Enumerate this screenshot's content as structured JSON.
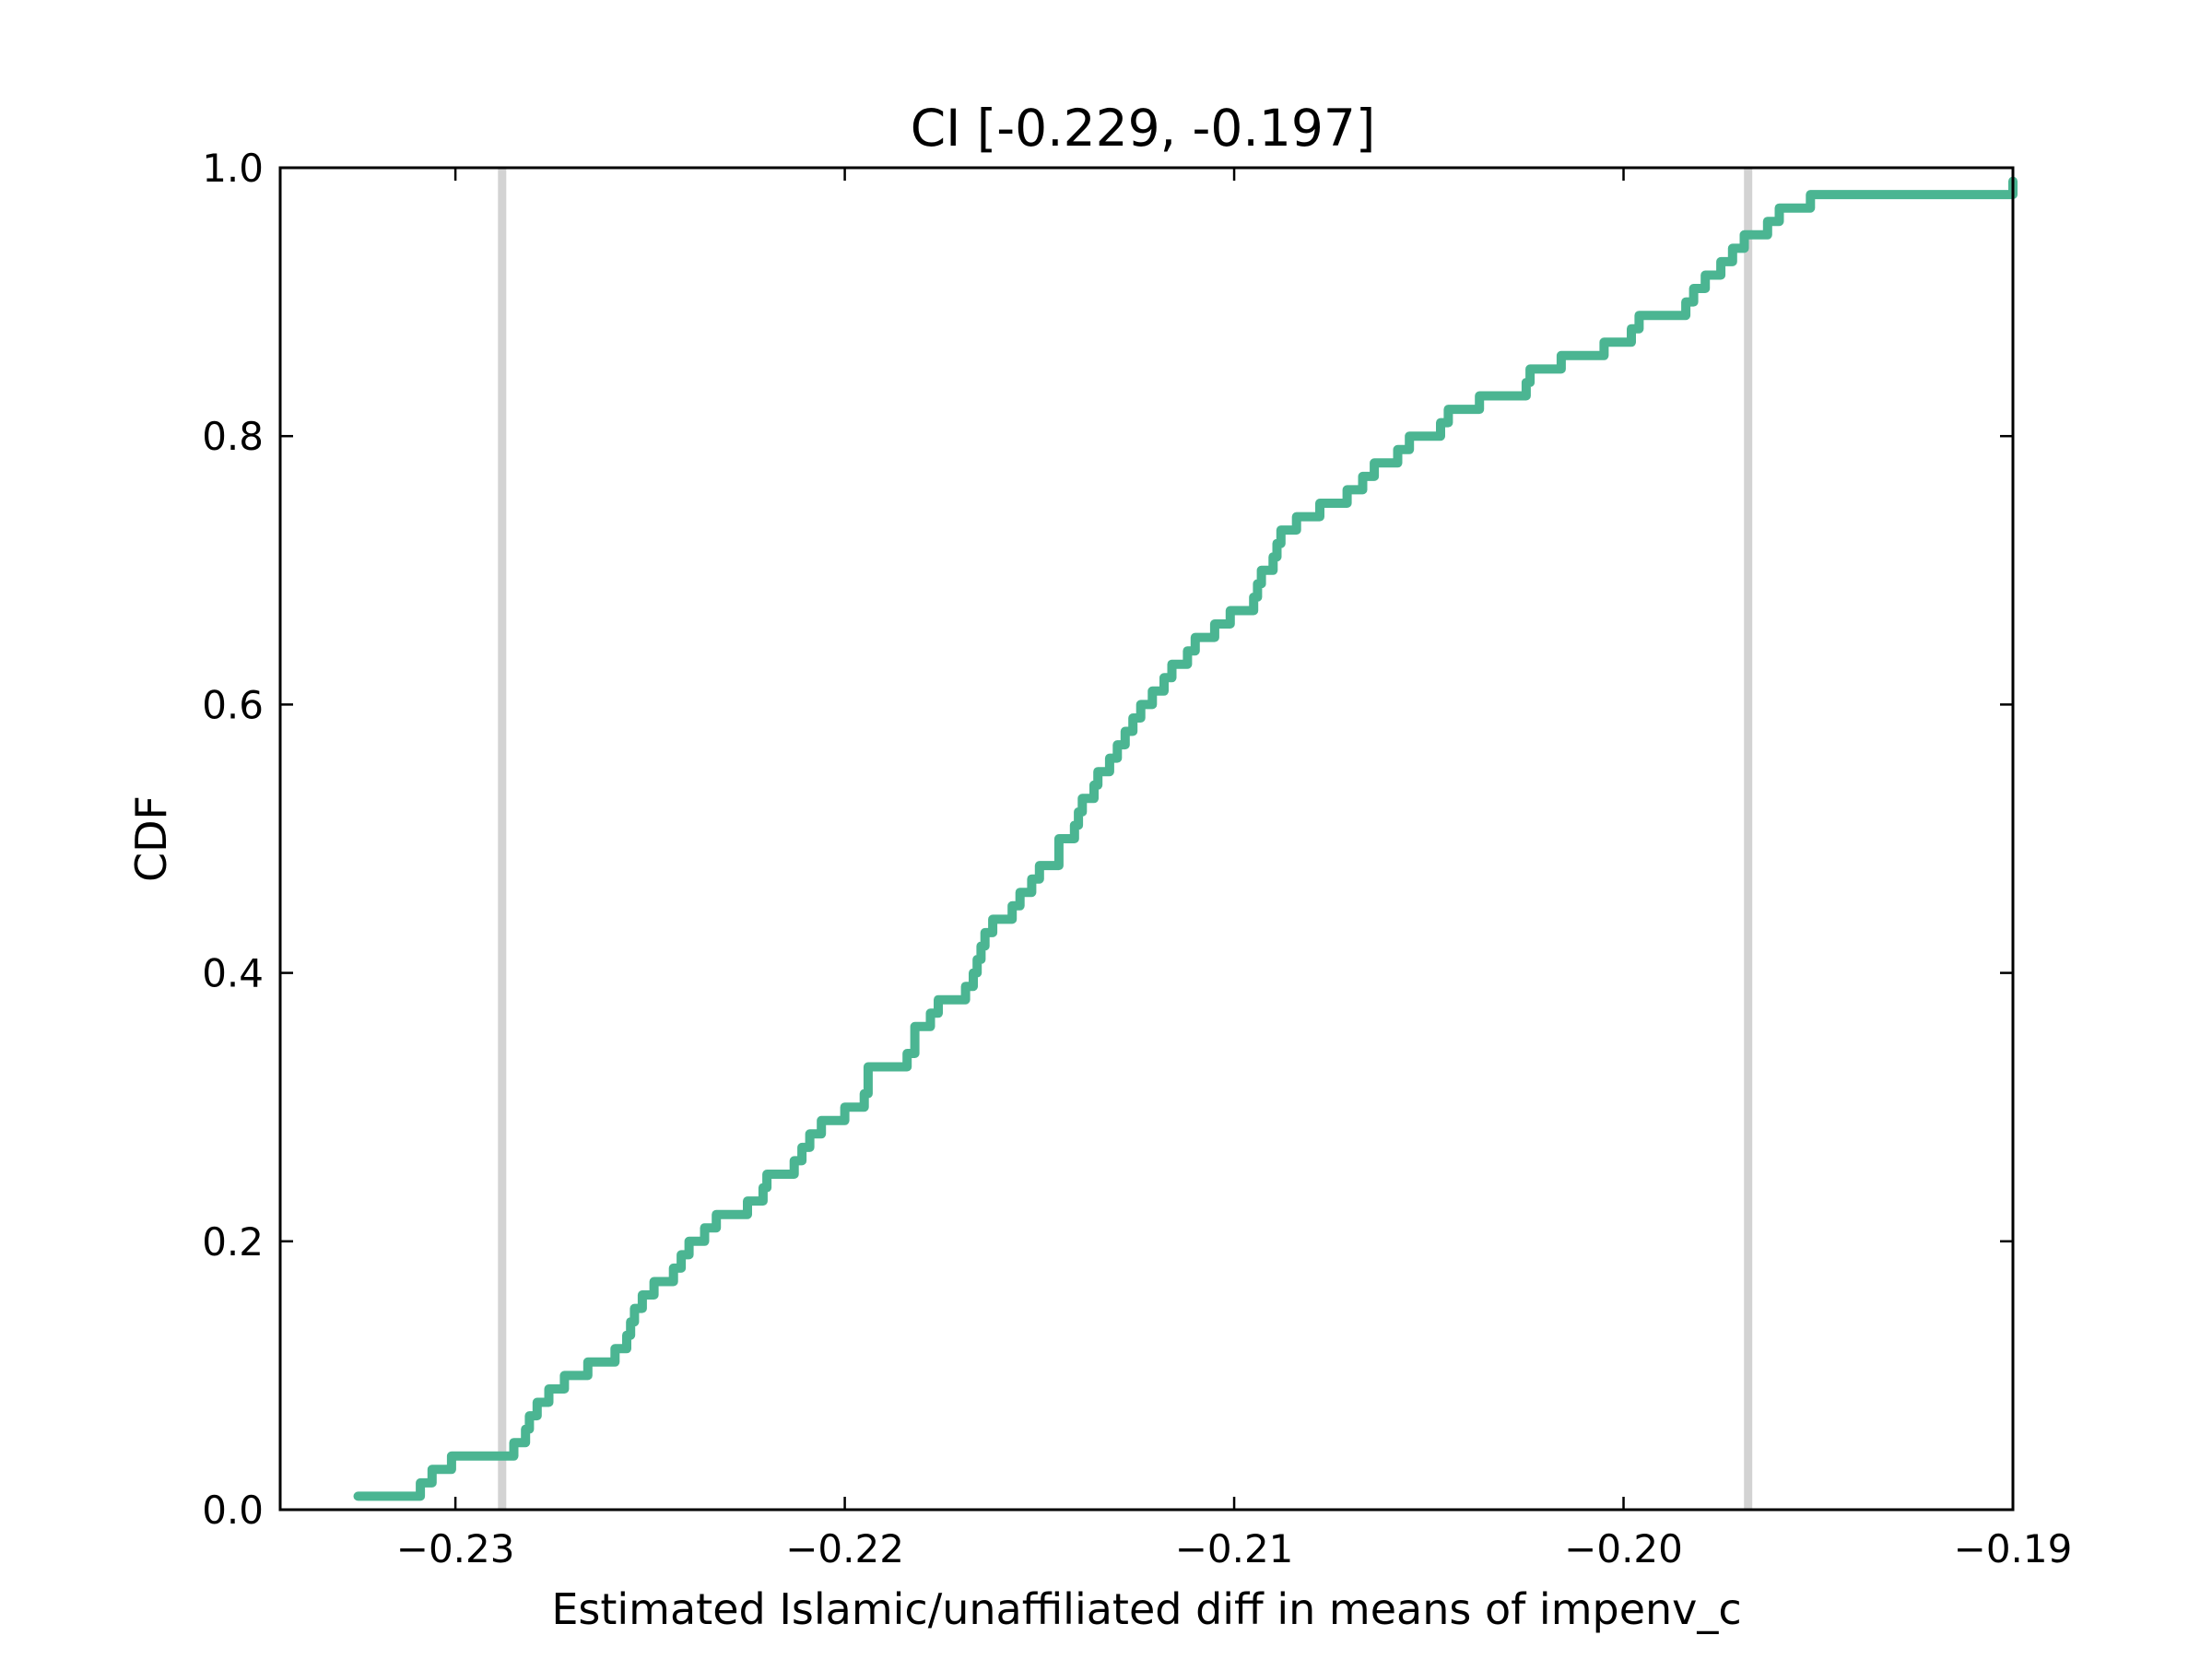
{
  "chart_data": {
    "type": "line",
    "title": "CI [-0.229, -0.197]",
    "xlabel": "Estimated Islamic/unaffiliated diff in means of impenv_c",
    "ylabel": "CDF",
    "xlim": [
      -0.2345,
      -0.19
    ],
    "ylim": [
      0,
      1
    ],
    "x_ticks": [
      {
        "value": -0.23,
        "label": "−0.23"
      },
      {
        "value": -0.22,
        "label": "−0.22"
      },
      {
        "value": -0.21,
        "label": "−0.21"
      },
      {
        "value": -0.2,
        "label": "−0.20"
      },
      {
        "value": -0.19,
        "label": "−0.19"
      }
    ],
    "y_ticks": [
      {
        "value": 0.0,
        "label": "0.0"
      },
      {
        "value": 0.2,
        "label": "0.2"
      },
      {
        "value": 0.4,
        "label": "0.4"
      },
      {
        "value": 0.6,
        "label": "0.6"
      },
      {
        "value": 0.8,
        "label": "0.8"
      },
      {
        "value": 1.0,
        "label": "1.0"
      }
    ],
    "grid": false,
    "ci_lines": [
      -0.2288,
      -0.1968
    ],
    "series": [
      {
        "color": "#4bb592",
        "drawstyle": "steps-post",
        "x": [
          -0.2325,
          -0.2309,
          -0.2306,
          -0.2301,
          -0.2285,
          -0.2282,
          -0.2281,
          -0.2279,
          -0.2276,
          -0.2272,
          -0.2266,
          -0.2259,
          -0.2256,
          -0.2255,
          -0.2254,
          -0.2252,
          -0.2249,
          -0.2244,
          -0.2242,
          -0.224,
          -0.2236,
          -0.2233,
          -0.2225,
          -0.2221,
          -0.222,
          -0.2213,
          -0.2211,
          -0.2209,
          -0.2206,
          -0.22,
          -0.2195,
          -0.2194,
          -0.2194,
          -0.2184,
          -0.2182,
          -0.2182,
          -0.2178,
          -0.2176,
          -0.2169,
          -0.2167,
          -0.2166,
          -0.2165,
          -0.2164,
          -0.2162,
          -0.2157,
          -0.2155,
          -0.2152,
          -0.215,
          -0.2145,
          -0.2145,
          -0.2141,
          -0.214,
          -0.2139,
          -0.2136,
          -0.2135,
          -0.2132,
          -0.213,
          -0.2128,
          -0.2126,
          -0.2124,
          -0.2121,
          -0.2118,
          -0.2116,
          -0.2112,
          -0.211,
          -0.2105,
          -0.2101,
          -0.2095,
          -0.2094,
          -0.2093,
          -0.209,
          -0.2089,
          -0.2088,
          -0.2084,
          -0.2078,
          -0.2071,
          -0.2067,
          -0.2064,
          -0.2058,
          -0.2055,
          -0.2047,
          -0.2045,
          -0.2037,
          -0.2025,
          -0.2024,
          -0.2016,
          -0.2005,
          -0.1998,
          -0.1996,
          -0.1984,
          -0.1982,
          -0.1979,
          -0.1975,
          -0.1972,
          -0.1969,
          -0.1963,
          -0.196,
          -0.1952,
          -0.19
        ],
        "y": [
          0.01,
          0.02,
          0.03,
          0.04,
          0.05,
          0.06,
          0.07,
          0.08,
          0.09,
          0.1,
          0.11,
          0.12,
          0.13,
          0.14,
          0.15,
          0.16,
          0.17,
          0.18,
          0.19,
          0.2,
          0.21,
          0.22,
          0.23,
          0.24,
          0.25,
          0.26,
          0.27,
          0.28,
          0.29,
          0.3,
          0.31,
          0.32,
          0.33,
          0.34,
          0.35,
          0.36,
          0.37,
          0.38,
          0.39,
          0.4,
          0.41,
          0.42,
          0.43,
          0.44,
          0.45,
          0.46,
          0.47,
          0.48,
          0.49,
          0.5,
          0.51,
          0.52,
          0.53,
          0.54,
          0.55,
          0.56,
          0.57,
          0.58,
          0.59,
          0.6,
          0.61,
          0.62,
          0.63,
          0.64,
          0.65,
          0.66,
          0.67,
          0.68,
          0.69,
          0.7,
          0.71,
          0.72,
          0.73,
          0.74,
          0.75,
          0.76,
          0.77,
          0.78,
          0.79,
          0.8,
          0.81,
          0.82,
          0.83,
          0.84,
          0.85,
          0.86,
          0.87,
          0.88,
          0.89,
          0.9,
          0.91,
          0.92,
          0.93,
          0.94,
          0.95,
          0.96,
          0.97,
          0.98,
          0.99
        ]
      }
    ]
  },
  "colors": {
    "cdf_line": "#4bb592",
    "ci_line": "#d3d3d3",
    "axes": "#000000",
    "background": "#ffffff"
  }
}
